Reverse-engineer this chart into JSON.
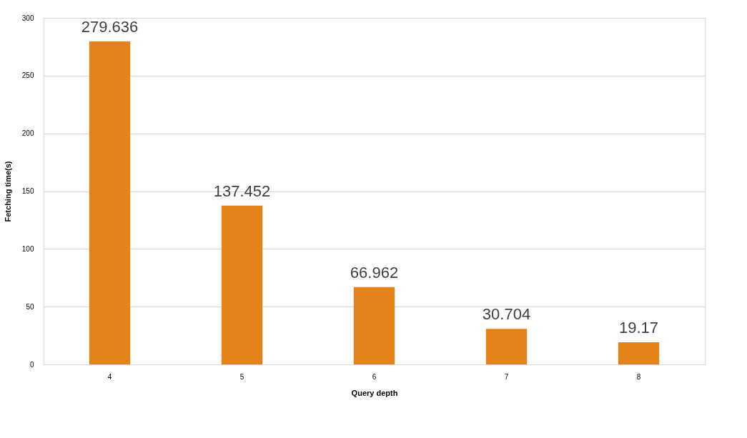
{
  "chart_data": {
    "type": "bar",
    "xlabel": "Query depth",
    "ylabel": "Fetching time(s)",
    "categories": [
      "4",
      "5",
      "6",
      "7",
      "8"
    ],
    "values": [
      279.636,
      137.452,
      66.962,
      30.704,
      19.17
    ],
    "color": "#e6821a",
    "ylim": [
      0,
      300
    ],
    "yticks": [
      0,
      50,
      100,
      150,
      200,
      250,
      300
    ],
    "grid": "y",
    "data_labels": true
  }
}
